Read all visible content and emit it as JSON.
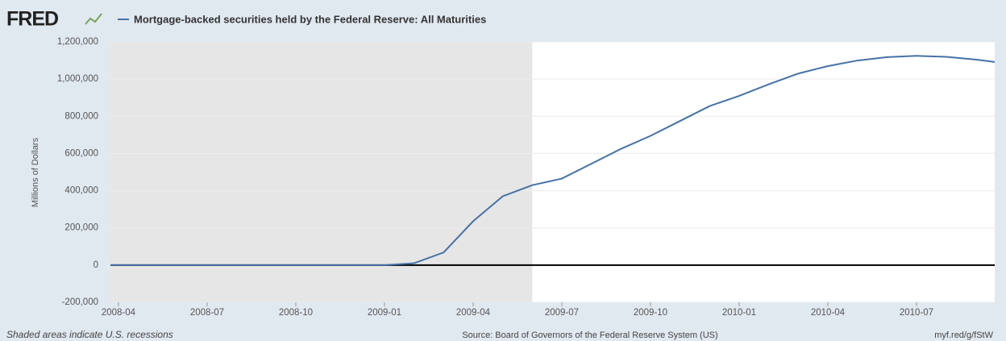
{
  "brand": "FRED",
  "chart_data": {
    "type": "line",
    "series": [
      {
        "name": "Mortgage-backed securities held by the Federal Reserve: All Maturities",
        "color": "#4572a7",
        "values": [
          0,
          0,
          0,
          0,
          0,
          0,
          0,
          0,
          0,
          0,
          0,
          10000,
          68000,
          236000,
          370000,
          430000,
          465000,
          545000,
          625000,
          695000,
          775000,
          855000,
          910000,
          972000,
          1030000,
          1070000,
          1100000,
          1118000,
          1125000,
          1120000,
          1105000,
          1085000
        ]
      }
    ],
    "x": [
      "2008-03",
      "2008-04",
      "2008-05",
      "2008-06",
      "2008-07",
      "2008-08",
      "2008-09",
      "2008-10",
      "2008-11",
      "2008-12",
      "2009-01",
      "2009-02",
      "2009-03",
      "2009-04",
      "2009-05",
      "2009-06",
      "2009-07",
      "2009-08",
      "2009-09",
      "2009-10",
      "2009-11",
      "2009-12",
      "2010-01",
      "2010-02",
      "2010-03",
      "2010-04",
      "2010-05",
      "2010-06",
      "2010-07",
      "2010-08",
      "2010-09",
      "2010-10"
    ],
    "xlim": [
      "2008-03",
      "2010-10"
    ],
    "xticks": [
      "2008-04",
      "2008-07",
      "2008-10",
      "2009-01",
      "2009-04",
      "2009-07",
      "2009-10",
      "2010-01",
      "2010-04",
      "2010-07"
    ],
    "ylim": [
      -200000,
      1200000
    ],
    "yticks": [
      {
        "value": -200000,
        "label": "-200,000"
      },
      0,
      {
        "value": 200000,
        "label": "200,000"
      },
      {
        "value": 400000,
        "label": "400,000"
      },
      {
        "value": 600000,
        "label": "600,000"
      },
      {
        "value": 800000,
        "label": "800,000"
      },
      {
        "value": 1000000,
        "label": "1,000,000"
      },
      {
        "value": 1200000,
        "label": "1,200,000"
      }
    ],
    "ylabel": "Millions of Dollars",
    "recession": {
      "start": "2008-03",
      "end": "2009-06"
    },
    "grid": true,
    "note": "Shaded areas indicate U.S. recessions",
    "source": "Source: Board of Governors of the Federal Reserve System (US)",
    "link": "myf.red/g/fStW"
  }
}
